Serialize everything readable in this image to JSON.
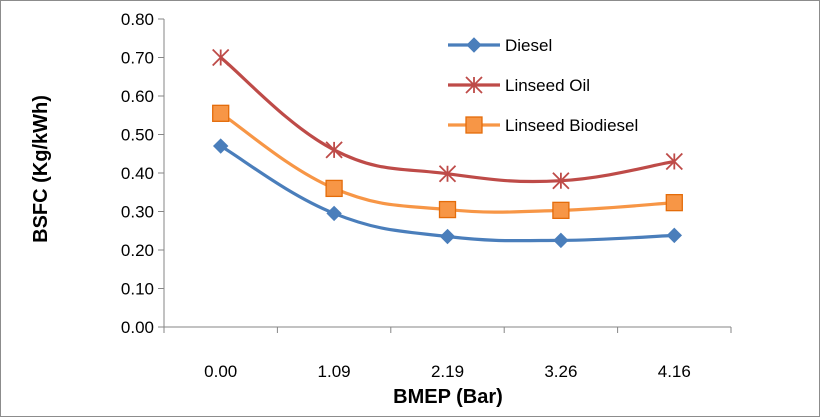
{
  "chart_data": {
    "type": "line",
    "xlabel": "BMEP (Bar)",
    "ylabel": "BSFC (Kg/kWh)",
    "categories": [
      "0.00",
      "1.09",
      "2.19",
      "3.26",
      "4.16"
    ],
    "y_ticks": [
      "0.00",
      "0.10",
      "0.20",
      "0.30",
      "0.40",
      "0.50",
      "0.60",
      "0.70",
      "0.80"
    ],
    "ylim": [
      0,
      0.8
    ],
    "grid": false,
    "legend_position": "top-right",
    "series": [
      {
        "name": "Diesel",
        "values": [
          0.47,
          0.295,
          0.235,
          0.225,
          0.238
        ],
        "color": "#4a7ebb",
        "marker": "diamond"
      },
      {
        "name": "Linseed Oil",
        "values": [
          0.7,
          0.46,
          0.398,
          0.38,
          0.43
        ],
        "color": "#be4b48",
        "marker": "star"
      },
      {
        "name": "Linseed Biodiesel",
        "values": [
          0.555,
          0.36,
          0.305,
          0.303,
          0.323
        ],
        "color": "#f79646",
        "marker": "square"
      }
    ]
  }
}
